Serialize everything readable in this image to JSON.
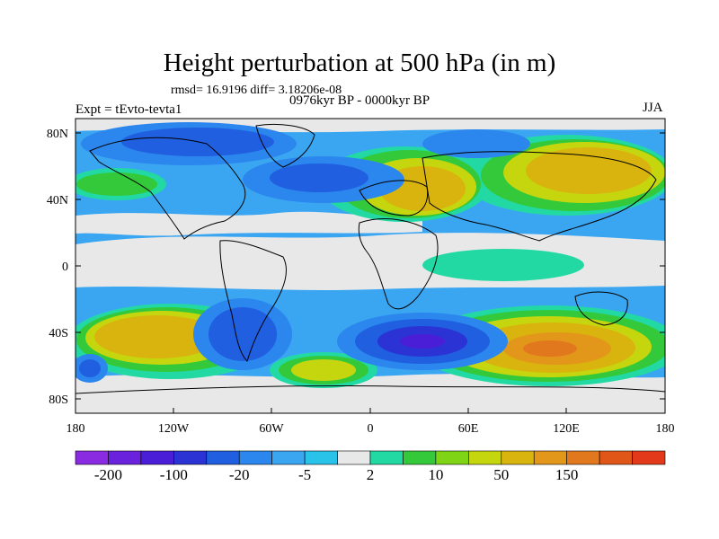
{
  "header": {
    "title": "Height perturbation at 500 hPa (in m)",
    "stats": "rmsd= 16.9196 diff= 3.18206e-08",
    "experiment": "Expt = tEvto-tevta1",
    "period": "0976kyr BP - 0000kyr BP",
    "season": "JJA"
  },
  "map": {
    "projection": "cylindrical equidistant",
    "lat_ticks": [
      "80N",
      "40N",
      "0",
      "40S",
      "80S"
    ],
    "lon_ticks": [
      "180",
      "120W",
      "60W",
      "0",
      "60E",
      "120E",
      "180"
    ]
  },
  "colorbar": {
    "colors": [
      "#8a2be2",
      "#6a22dd",
      "#4a1ed6",
      "#2b33d4",
      "#1f5fe0",
      "#2b86ee",
      "#3aa6f2",
      "#29c2e8",
      "#e8e8e8",
      "#22d9a4",
      "#33c93a",
      "#7fd416",
      "#c6d60e",
      "#d9b40f",
      "#e2961a",
      "#e2781e",
      "#e05518",
      "#e2391a"
    ],
    "labels": [
      "-200",
      "-100",
      "-20",
      "-5",
      "2",
      "10",
      "50",
      "150"
    ]
  },
  "colors": {
    "land_outline": "#000000",
    "neutral": "#e8e8e8",
    "background_field": "#3aa6f2"
  }
}
